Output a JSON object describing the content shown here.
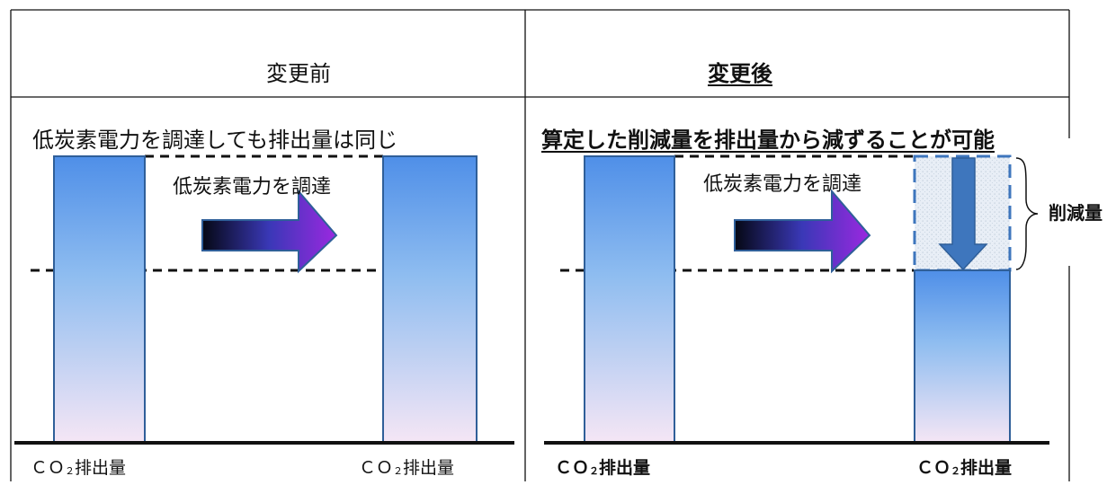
{
  "table": {
    "left_header": "変更前",
    "right_header": "変更後"
  },
  "left_panel": {
    "subtitle": "低炭素電力を調達しても排出量は同じ",
    "arrow_label": "低炭素電力を調達",
    "bar_label_1": "ＣＯ",
    "bar_label_1_sub": "２",
    "bar_label_1_tail": "排出量",
    "bar_label_2": "ＣＯ",
    "bar_label_2_sub": "２",
    "bar_label_2_tail": "排出量"
  },
  "right_panel": {
    "subtitle": "算定した削減量を排出量から減ずることが可能",
    "arrow_label": "低炭素電力を調達",
    "bar_label_1": "ＣＯ",
    "bar_label_1_sub": "２",
    "bar_label_1_tail": "排出量",
    "bar_label_2": "ＣＯ",
    "bar_label_2_sub": "２",
    "bar_label_2_tail": "排出量",
    "reduction_label": "削減量"
  },
  "colors": {
    "blue_top": "#4f8fe8",
    "blue_mid": "#8fbdf0",
    "bar_bottom": "#f5e6f5",
    "bar_border": "#2f5f99",
    "arrow_dark": "#050814",
    "arrow_mid": "#3a38b7",
    "arrow_purple": "#9b28e0",
    "down_arrow": "#3e76bd",
    "reduction_fill": "#e8eef6"
  }
}
